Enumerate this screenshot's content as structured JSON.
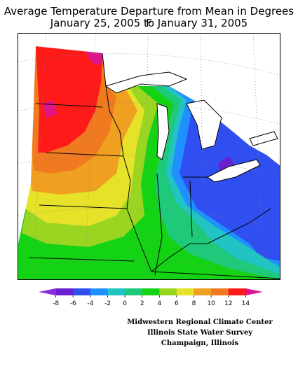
{
  "title": {
    "line1": "Average Temperature Departure from Mean in Degrees F",
    "line2": "January 25, 2005 to January 31, 2005"
  },
  "colorbar": {
    "ticks": [
      "-8",
      "-6",
      "-4",
      "-2",
      "0",
      "2",
      "4",
      "6",
      "8",
      "10",
      "12",
      "14"
    ],
    "colors": [
      "#8a2be2",
      "#6a1fd0",
      "#2f4ff0",
      "#1e90ff",
      "#22c3c3",
      "#1ec97a",
      "#14d214",
      "#9ad621",
      "#e6e22a",
      "#f0a020",
      "#f07a20",
      "#ff1a1a",
      "#e0148a"
    ]
  },
  "legend_colors": {
    "magenta": "#e0148a",
    "red": "#ff1a1a",
    "orange": "#f07a20",
    "light_orange": "#f0a020",
    "yellow": "#e6e22a",
    "yellow_green": "#9ad621",
    "green": "#14d214",
    "teal_green": "#1ec97a",
    "teal": "#22c3c3",
    "light_blue": "#1e90ff",
    "blue": "#2f4ff0",
    "purple": "#6a1fd0"
  },
  "credits": {
    "line1": "Midwestern Regional Climate Center",
    "line2": "Illinois State Water Survey",
    "line3": "Champaign, Illinois"
  }
}
